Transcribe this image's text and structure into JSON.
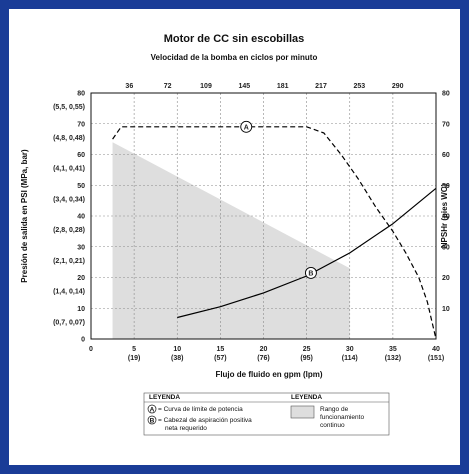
{
  "chart_data": {
    "type": "line",
    "title": "Motor de CC sin escobillas",
    "subtitle": "Velocidad de la bomba en ciclos por minuto",
    "xlabel": "Flujo de fluido en gpm (lpm)",
    "ylabel_left": "Presión de salida en PSI (MPa, bar)",
    "ylabel_right": "NPSHr (pies WC)",
    "xlim": [
      0,
      40
    ],
    "ylim": [
      0,
      80
    ],
    "y_right_lim": [
      0,
      80
    ],
    "grid": true,
    "x_ticks": [
      "0",
      "5",
      "10",
      "15",
      "20",
      "25",
      "30",
      "35",
      "40"
    ],
    "x_ticks_sub": [
      "",
      "(19)",
      "(38)",
      "(57)",
      "(76)",
      "(95)",
      "(114)",
      "(132)",
      "(151)"
    ],
    "top_ticks": [
      "36",
      "72",
      "109",
      "145",
      "181",
      "217",
      "253",
      "290"
    ],
    "left_ticks": [
      "80",
      "70",
      "60",
      "50",
      "40",
      "30",
      "20",
      "10",
      "0"
    ],
    "left_ticks_sub": [
      "(5,5, 0,55)",
      "(4,8, 0,48)",
      "(4,1, 0,41)",
      "(3,4, 0,34)",
      "(2,8, 0,28)",
      "(2,1, 0,21)",
      "(1,4, 0,14)",
      "(0,7, 0,07)"
    ],
    "right_ticks": [
      "80",
      "70",
      "60",
      "50",
      "40",
      "30",
      "20",
      "10"
    ],
    "series": [
      {
        "label": "A",
        "style": "dashed",
        "x": [
          2.5,
          3.5,
          6,
          10,
          15,
          20,
          25,
          27,
          29,
          31,
          33,
          35,
          36.5,
          38,
          39,
          39.5,
          40
        ],
        "y": [
          65,
          69,
          69,
          69,
          69,
          69,
          69,
          67,
          60,
          52,
          43,
          35,
          28,
          20,
          12,
          6,
          0
        ]
      },
      {
        "label": "B",
        "style": "solid",
        "x": [
          10,
          15,
          20,
          25,
          30,
          35,
          40
        ],
        "y": [
          7,
          10.5,
          15,
          20.5,
          28,
          37.5,
          49
        ]
      }
    ],
    "region": {
      "x": [
        2.5,
        2.5,
        30,
        30
      ],
      "y": [
        0,
        64,
        23,
        0
      ],
      "color": "#dedede"
    },
    "legend": {
      "heading_left": "LEYENDA",
      "heading_right": "LEYENDA",
      "items": [
        {
          "marker": "A",
          "text": "= Curva de límite de potencia"
        },
        {
          "marker": "B",
          "text": "= Cabezal de aspiración positiva",
          "text2": "neta requerido"
        }
      ],
      "range_lines": [
        "Rango de",
        "funcionamiento",
        "continuo"
      ]
    }
  }
}
